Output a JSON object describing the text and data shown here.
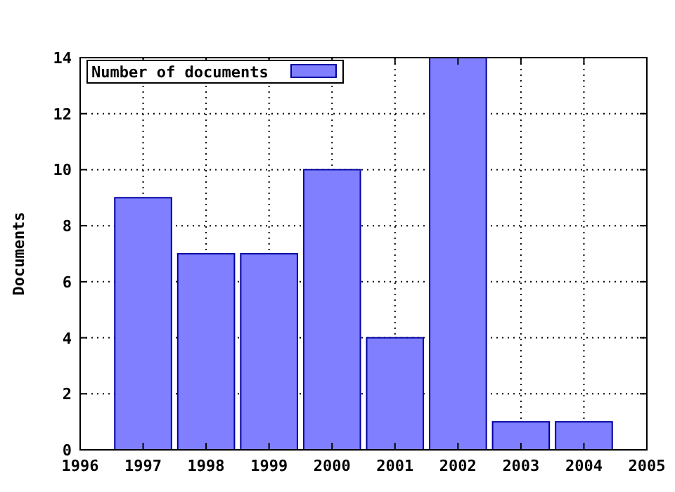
{
  "chart_data": {
    "type": "bar",
    "ylabel": "Documents",
    "x": [
      1997,
      1998,
      1999,
      2000,
      2001,
      2002,
      2003,
      2004
    ],
    "series": [
      {
        "name": "Number of documents",
        "color": "#7f7fff",
        "values": [
          9,
          7,
          7,
          10,
          4,
          14,
          1,
          1
        ]
      }
    ],
    "xlim": [
      1996,
      2005
    ],
    "xticks": [
      1996,
      1997,
      1998,
      1999,
      2000,
      2001,
      2002,
      2003,
      2004,
      2005
    ],
    "ylim": [
      0,
      14
    ],
    "yticks": [
      0,
      2,
      4,
      6,
      8,
      10,
      12,
      14
    ],
    "grid": true,
    "legend": "top left"
  }
}
